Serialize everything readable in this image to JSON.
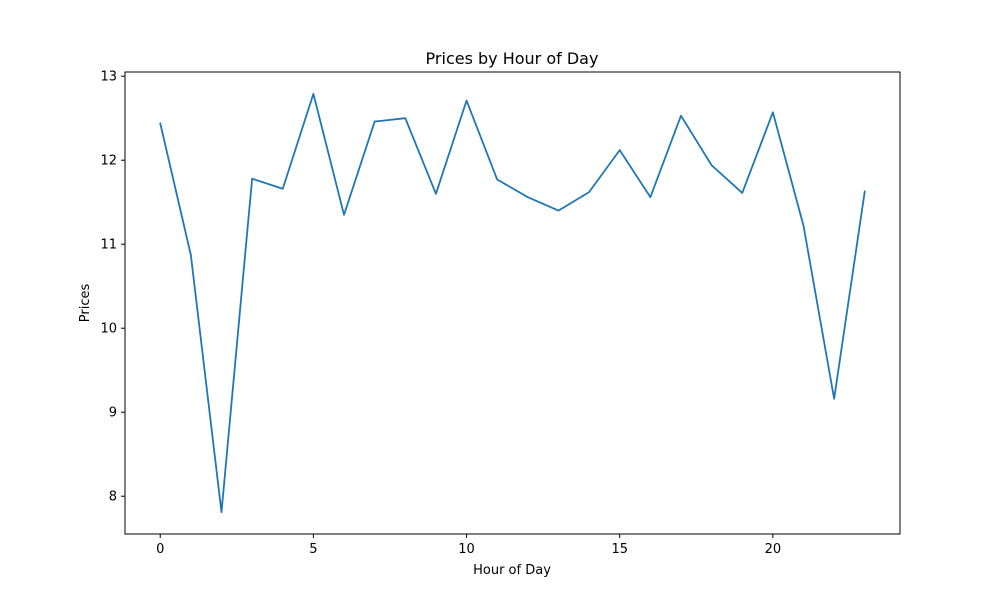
{
  "chart_data": {
    "type": "line",
    "title": "Prices by Hour of Day",
    "xlabel": "Hour of Day",
    "ylabel": "Prices",
    "xlim": [
      -1.15,
      24.15
    ],
    "ylim": [
      7.55,
      13.05
    ],
    "xticks": [
      0,
      5,
      10,
      15,
      20
    ],
    "yticks": [
      8,
      9,
      10,
      11,
      12,
      13
    ],
    "grid": false,
    "series": [
      {
        "color": "#1f77b4",
        "x": [
          0,
          1,
          2,
          3,
          4,
          5,
          6,
          7,
          8,
          9,
          10,
          11,
          12,
          13,
          14,
          15,
          16,
          17,
          18,
          19,
          20,
          21,
          22,
          23
        ],
        "y": [
          12.44,
          10.87,
          7.81,
          11.78,
          11.66,
          12.79,
          11.35,
          12.46,
          12.5,
          11.6,
          12.71,
          11.77,
          11.56,
          11.4,
          11.62,
          12.12,
          11.56,
          12.53,
          11.94,
          11.61,
          12.57,
          11.22,
          9.16,
          11.63
        ]
      }
    ]
  }
}
